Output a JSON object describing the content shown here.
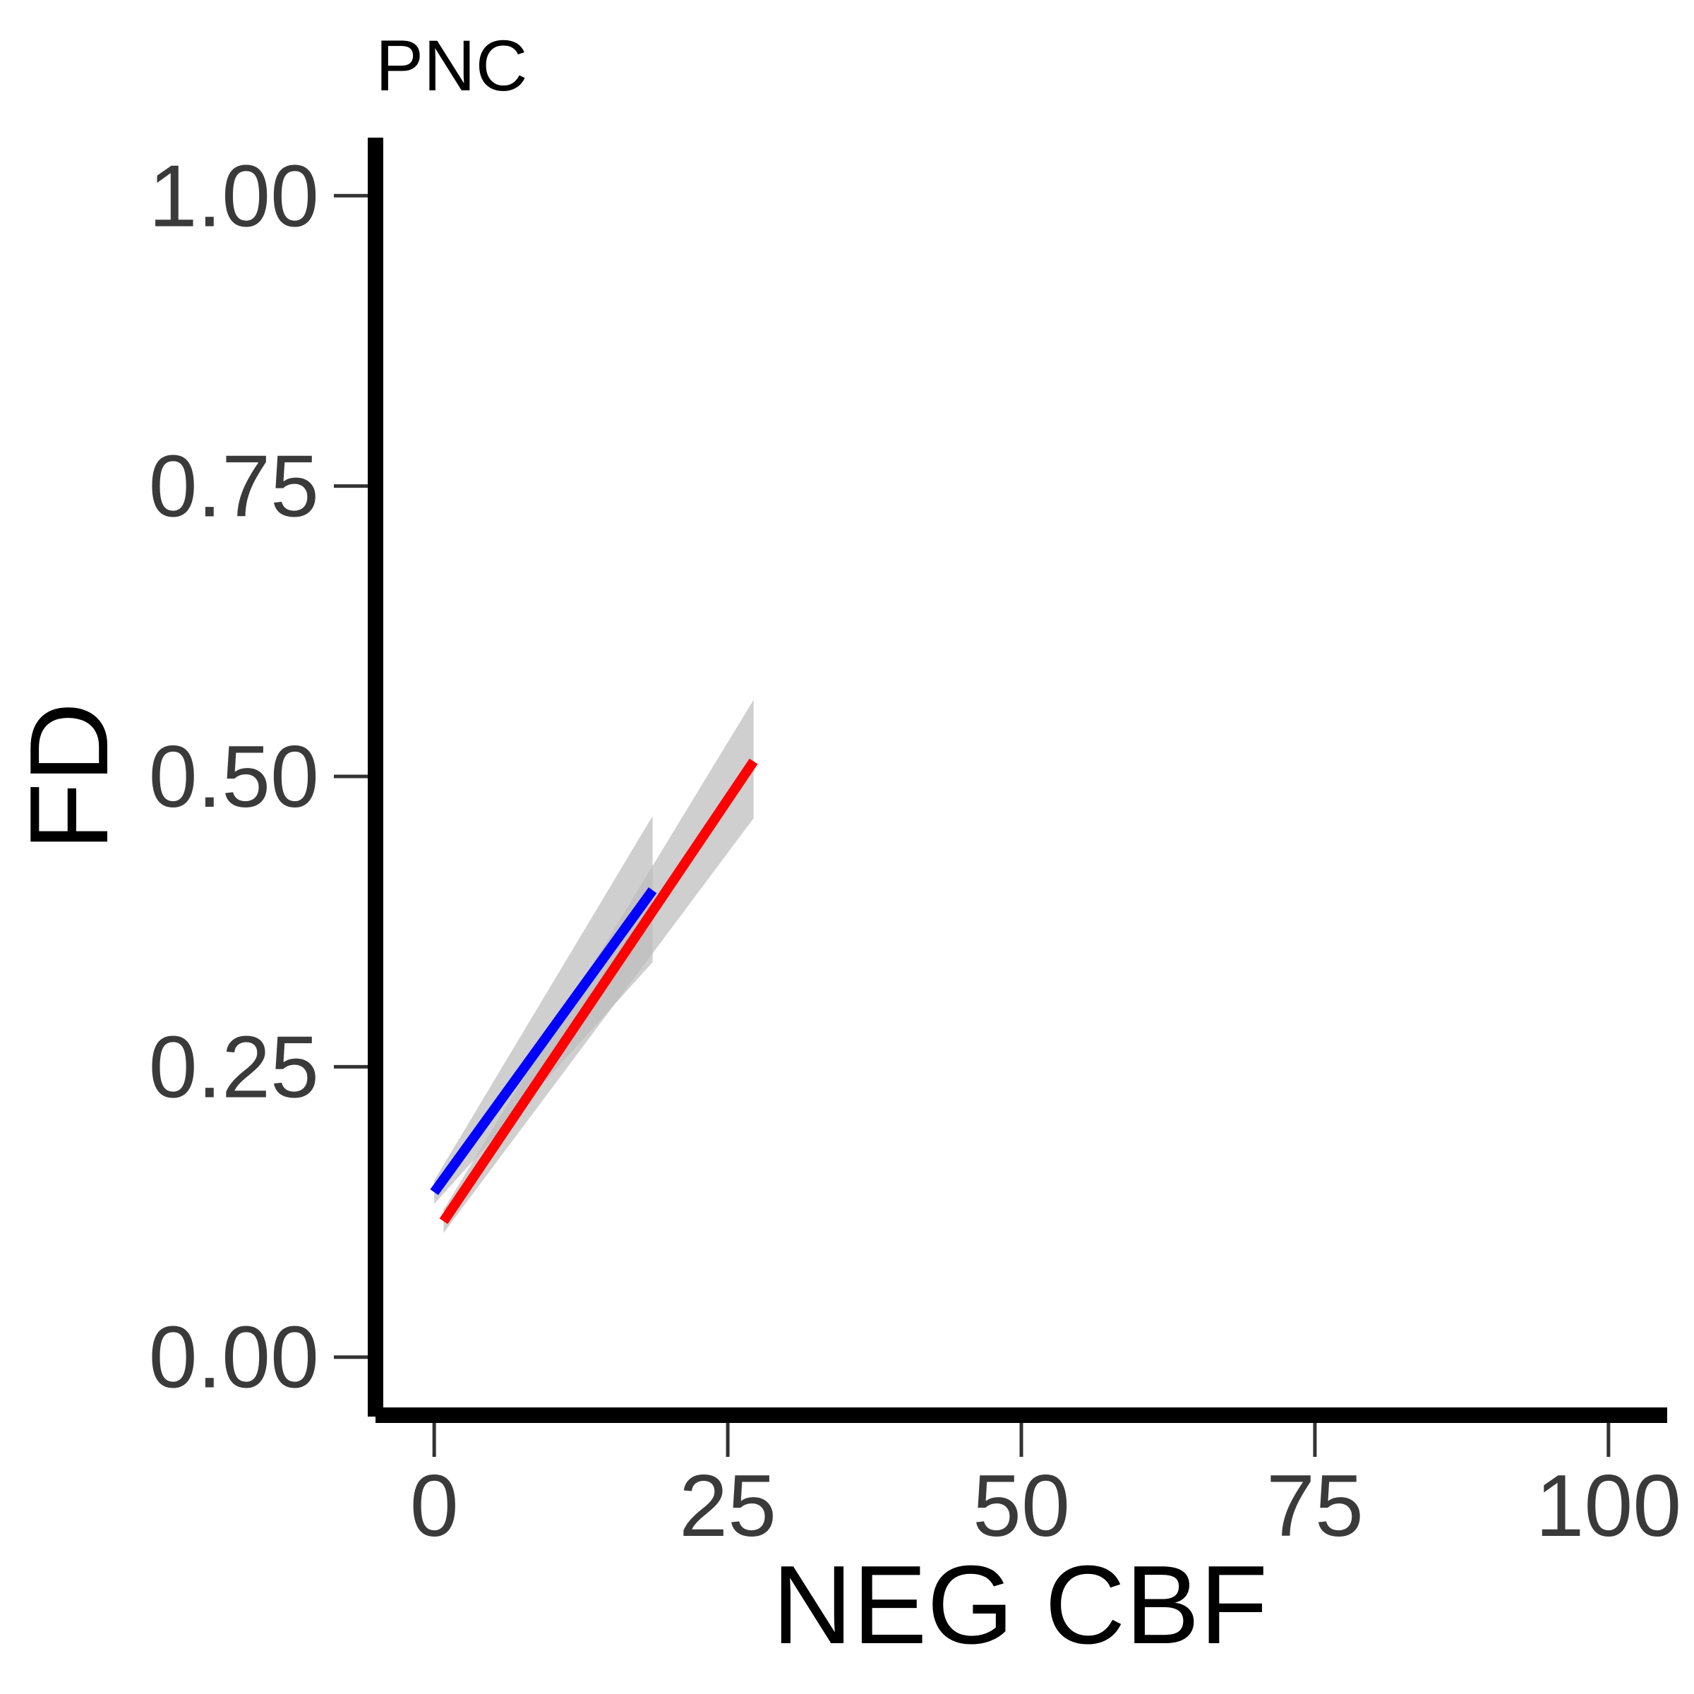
{
  "chart_data": {
    "type": "line",
    "title": "PNC",
    "xlabel": "NEG CBF",
    "ylabel": "FD",
    "xlim": [
      -5,
      105
    ],
    "ylim": [
      -0.05,
      1.05
    ],
    "x_ticks": [
      0,
      25,
      50,
      75,
      100
    ],
    "x_tick_labels": [
      "0",
      "25",
      "50",
      "75",
      "100"
    ],
    "y_ticks": [
      0,
      0.25,
      0.5,
      0.75,
      1
    ],
    "y_tick_labels": [
      "0.00",
      "0.25",
      "0.50",
      "0.75",
      "1.00"
    ],
    "grid": false,
    "legend": "none",
    "series": [
      {
        "color": "#0000ff",
        "x": [
          0,
          18.6
        ],
        "y": [
          0.142,
          0.402
        ],
        "ci_lower": [
          0.132,
          0.34
        ],
        "ci_upper": [
          0.152,
          0.466
        ]
      },
      {
        "color": "#ff0000",
        "x": [
          0.8,
          27.2
        ],
        "y": [
          0.117,
          0.513
        ],
        "ci_lower": [
          0.107,
          0.464
        ],
        "ci_upper": [
          0.127,
          0.566
        ]
      }
    ],
    "band_color": "#bdbdbd"
  }
}
